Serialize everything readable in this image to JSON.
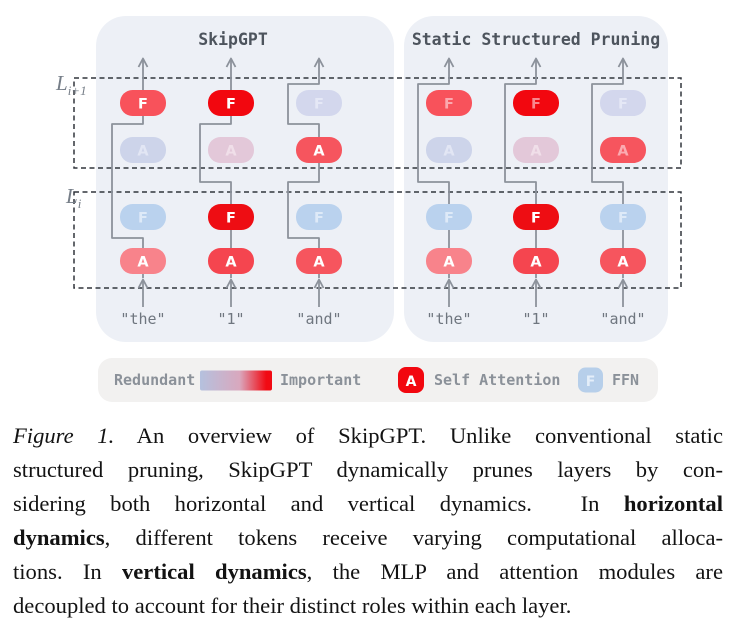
{
  "diagram": {
    "layer_labels": {
      "upper_base": "L",
      "upper_sub": "i+1",
      "lower_base": "L",
      "lower_sub": "i"
    },
    "line_color": "#8C929B",
    "dash_color": "#30353C",
    "panel_bg": "#EDF0F6",
    "title_color": "#4D545D",
    "token_color": "#6F767F",
    "label_color": "#767E88",
    "panels": [
      {
        "title": "SkipGPT",
        "columns": [
          {
            "token": "\"the\"",
            "modules": {
              "li_A": {
                "label": "A",
                "color": "#F8838B",
                "letter_color": "#FFFFFF",
                "on_path": true
              },
              "li_F": {
                "label": "F",
                "color": "#BAD2EE",
                "letter_color": "#DEEAF8",
                "on_path": false
              },
              "li1_A": {
                "label": "A",
                "color": "#CDD4EA",
                "letter_color": "#E2E6F4",
                "on_path": false
              },
              "li1_F": {
                "label": "F",
                "color": "#F8525B",
                "letter_color": "#FFFFFF",
                "on_path": true
              }
            }
          },
          {
            "token": "\"1\"",
            "modules": {
              "li_A": {
                "label": "A",
                "color": "#F5454F",
                "letter_color": "#FFFFFF",
                "on_path": true
              },
              "li_F": {
                "label": "F",
                "color": "#EE0D13",
                "letter_color": "#FFFFFF",
                "on_path": true
              },
              "li1_A": {
                "label": "A",
                "color": "#E3C8D9",
                "letter_color": "#F0DFE9",
                "on_path": false
              },
              "li1_F": {
                "label": "F",
                "color": "#F2070F",
                "letter_color": "#FFFFFF",
                "on_path": true
              }
            }
          },
          {
            "token": "\"and\"",
            "modules": {
              "li_A": {
                "label": "A",
                "color": "#F6555E",
                "letter_color": "#FFFFFF",
                "on_path": true
              },
              "li_F": {
                "label": "F",
                "color": "#BAD2EE",
                "letter_color": "#DEEAF8",
                "on_path": false
              },
              "li1_A": {
                "label": "A",
                "color": "#F6555E",
                "letter_color": "#FFFFFF",
                "on_path": true
              },
              "li1_F": {
                "label": "F",
                "color": "#D3D7ED",
                "letter_color": "#E5E8F6",
                "on_path": false
              }
            }
          }
        ]
      },
      {
        "title": "Static Structured Pruning",
        "columns": [
          {
            "token": "\"the\"",
            "modules": {
              "li_A": {
                "label": "A",
                "color": "#F8838B",
                "letter_color": "#FFFFFF",
                "on_path": true
              },
              "li_F": {
                "label": "F",
                "color": "#BAD2EE",
                "letter_color": "#DEEAF8",
                "on_path": true
              },
              "li1_A": {
                "label": "A",
                "color": "#CDD4EA",
                "letter_color": "#E2E6F4",
                "on_path": false
              },
              "li1_F": {
                "label": "F",
                "color": "#F8525B",
                "letter_color": "#FBA9AF",
                "on_path": false
              }
            }
          },
          {
            "token": "\"1\"",
            "modules": {
              "li_A": {
                "label": "A",
                "color": "#F5454F",
                "letter_color": "#FFFFFF",
                "on_path": true
              },
              "li_F": {
                "label": "F",
                "color": "#EE0D13",
                "letter_color": "#FFFFFF",
                "on_path": true
              },
              "li1_A": {
                "label": "A",
                "color": "#E3C8D9",
                "letter_color": "#F0DFE9",
                "on_path": false
              },
              "li1_F": {
                "label": "F",
                "color": "#F2070F",
                "letter_color": "#F8878D",
                "on_path": false
              }
            }
          },
          {
            "token": "\"and\"",
            "modules": {
              "li_A": {
                "label": "A",
                "color": "#F6555E",
                "letter_color": "#FFFFFF",
                "on_path": true
              },
              "li_F": {
                "label": "F",
                "color": "#BAD2EE",
                "letter_color": "#DEEAF8",
                "on_path": true
              },
              "li1_A": {
                "label": "A",
                "color": "#F6555E",
                "letter_color": "#FBABB1",
                "on_path": false
              },
              "li1_F": {
                "label": "F",
                "color": "#D3D7ED",
                "letter_color": "#E5E8F6",
                "on_path": false
              }
            }
          }
        ]
      }
    ],
    "legend": {
      "bg": "#F2F1F0",
      "text_color": "#8B9199",
      "redundant_label": "Redundant",
      "important_label": "Important",
      "gradient_from": "#B5C1DE",
      "gradient_mid": "#D9A8BE",
      "gradient_to": "#F10A13",
      "attention_badge_letter": "A",
      "attention_badge_color": "#F2070F",
      "attention_badge_letter_color": "#FFFFFF",
      "attention_label": "Self Attention",
      "ffn_badge_letter": "F",
      "ffn_badge_color": "#B7CFEA",
      "ffn_badge_letter_color": "#E4EEF9",
      "ffn_label": "FFN"
    }
  },
  "caption": {
    "lines": [
      {
        "segments": [
          {
            "text": "Figure 1.",
            "italic": true
          },
          {
            "text": " An overview of SkipGPT. Unlike conventional static"
          }
        ]
      },
      {
        "segments": [
          {
            "text": "structured pruning, SkipGPT dynamically prunes layers by con-"
          }
        ]
      },
      {
        "segments": [
          {
            "text": "sidering both horizontal and vertical dynamics.  In "
          },
          {
            "text": "horizontal",
            "bold": true
          }
        ]
      },
      {
        "segments": [
          {
            "text": "dynamics",
            "bold": true
          },
          {
            "text": ", different tokens receive varying computational alloca-"
          }
        ]
      },
      {
        "segments": [
          {
            "text": "tions. In "
          },
          {
            "text": "vertical dynamics",
            "bold": true
          },
          {
            "text": ", the MLP and attention modules are"
          }
        ]
      },
      {
        "segments": [
          {
            "text": "decoupled to account for their distinct roles within each layer."
          }
        ]
      }
    ]
  }
}
